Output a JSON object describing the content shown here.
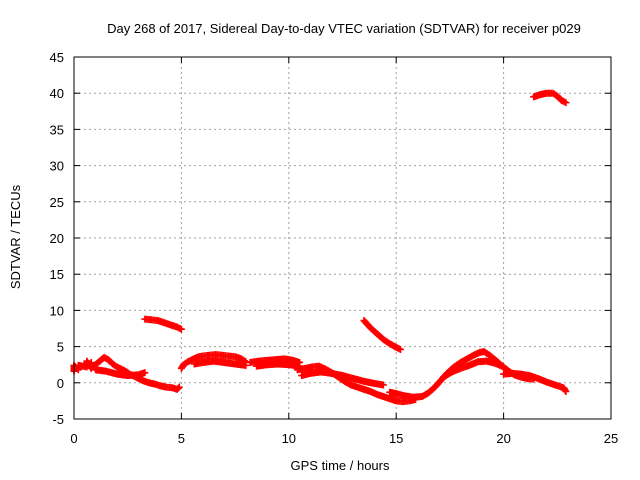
{
  "chart_data": {
    "type": "scatter",
    "title": "Day 268 of 2017, Sidereal Day-to-day VTEC variation (SDTVAR) for receiver p029",
    "xlabel": "GPS time / hours",
    "ylabel": "SDTVAR / TECUs",
    "xlim": [
      0,
      25
    ],
    "ylim": [
      -5,
      45
    ],
    "xticks": [
      0,
      5,
      10,
      15,
      20,
      25
    ],
    "yticks": [
      -5,
      0,
      5,
      10,
      15,
      20,
      25,
      30,
      35,
      40,
      45
    ],
    "grid": true,
    "marker_color": "#ff0000",
    "series": [
      {
        "name": "SDTVAR",
        "segments": [
          [
            [
              0.0,
              1.6
            ],
            [
              0.0,
              2.4
            ],
            [
              0.2,
              1.8
            ],
            [
              0.2,
              2.4
            ],
            [
              0.6,
              2.2
            ],
            [
              0.6,
              3.0
            ],
            [
              0.8,
              2.0
            ],
            [
              0.8,
              2.8
            ]
          ],
          [
            [
              0.9,
              2.2
            ],
            [
              1.0,
              2.5
            ],
            [
              1.2,
              3.0
            ],
            [
              1.4,
              3.5
            ],
            [
              1.6,
              3.2
            ],
            [
              1.8,
              2.6
            ],
            [
              2.0,
              2.2
            ],
            [
              2.2,
              1.9
            ],
            [
              2.4,
              1.6
            ],
            [
              2.6,
              1.2
            ],
            [
              2.8,
              0.9
            ],
            [
              3.0,
              0.6
            ],
            [
              3.2,
              0.3
            ],
            [
              3.5,
              0.0
            ],
            [
              3.8,
              -0.2
            ],
            [
              4.0,
              -0.4
            ],
            [
              4.3,
              -0.6
            ],
            [
              4.6,
              -0.7
            ],
            [
              4.8,
              -0.9
            ],
            [
              4.9,
              -0.6
            ]
          ],
          [
            [
              1.0,
              1.8
            ],
            [
              1.5,
              1.6
            ],
            [
              2.0,
              1.2
            ],
            [
              2.5,
              1.0
            ],
            [
              3.0,
              1.1
            ],
            [
              3.3,
              1.4
            ]
          ],
          [
            [
              3.3,
              8.8
            ],
            [
              3.6,
              8.7
            ],
            [
              3.9,
              8.6
            ],
            [
              4.2,
              8.3
            ],
            [
              4.5,
              8.0
            ],
            [
              4.8,
              7.7
            ],
            [
              5.0,
              7.4
            ]
          ],
          [
            [
              5.0,
              2.0
            ],
            [
              5.1,
              2.5
            ],
            [
              5.3,
              2.9
            ],
            [
              5.5,
              3.2
            ],
            [
              5.8,
              3.6
            ],
            [
              6.0,
              3.7
            ],
            [
              6.3,
              3.8
            ],
            [
              6.6,
              3.9
            ],
            [
              6.9,
              3.8
            ],
            [
              7.2,
              3.7
            ],
            [
              7.5,
              3.6
            ],
            [
              7.8,
              3.3
            ],
            [
              8.0,
              2.9
            ]
          ],
          [
            [
              5.6,
              2.6
            ],
            [
              6.0,
              2.8
            ],
            [
              6.5,
              3.0
            ],
            [
              7.0,
              2.8
            ],
            [
              7.5,
              2.6
            ],
            [
              8.0,
              2.4
            ]
          ],
          [
            [
              8.2,
              2.8
            ],
            [
              8.6,
              3.0
            ],
            [
              9.0,
              3.1
            ],
            [
              9.4,
              3.2
            ],
            [
              9.8,
              3.3
            ],
            [
              10.2,
              3.1
            ],
            [
              10.5,
              2.8
            ]
          ],
          [
            [
              8.5,
              2.3
            ],
            [
              9.0,
              2.5
            ],
            [
              9.5,
              2.6
            ],
            [
              10.0,
              2.5
            ],
            [
              10.5,
              2.3
            ]
          ],
          [
            [
              10.4,
              1.8
            ],
            [
              10.8,
              2.0
            ],
            [
              11.1,
              2.2
            ],
            [
              11.4,
              2.3
            ],
            [
              11.7,
              1.9
            ],
            [
              12.0,
              1.4
            ],
            [
              12.3,
              0.8
            ],
            [
              12.6,
              0.2
            ],
            [
              12.9,
              -0.3
            ],
            [
              13.2,
              -0.6
            ],
            [
              13.5,
              -0.9
            ],
            [
              13.8,
              -1.2
            ],
            [
              14.1,
              -1.6
            ],
            [
              14.4,
              -1.9
            ],
            [
              14.7,
              -2.2
            ],
            [
              15.0,
              -2.5
            ],
            [
              15.3,
              -2.6
            ],
            [
              15.6,
              -2.5
            ],
            [
              15.9,
              -2.3
            ]
          ],
          [
            [
              10.6,
              1.0
            ],
            [
              11.0,
              1.3
            ],
            [
              11.5,
              1.5
            ],
            [
              12.0,
              1.3
            ],
            [
              12.5,
              1.0
            ],
            [
              13.0,
              0.6
            ],
            [
              13.5,
              0.2
            ],
            [
              14.0,
              -0.1
            ],
            [
              14.4,
              -0.3
            ]
          ],
          [
            [
              13.5,
              8.6
            ],
            [
              13.8,
              7.6
            ],
            [
              14.1,
              6.8
            ],
            [
              14.4,
              6.0
            ],
            [
              14.7,
              5.4
            ],
            [
              15.0,
              4.9
            ],
            [
              15.2,
              4.6
            ]
          ],
          [
            [
              14.7,
              -1.3
            ],
            [
              15.0,
              -1.5
            ],
            [
              15.4,
              -1.8
            ],
            [
              15.8,
              -2.0
            ],
            [
              16.2,
              -1.9
            ],
            [
              16.5,
              -1.4
            ],
            [
              16.8,
              -0.6
            ],
            [
              17.1,
              0.4
            ],
            [
              17.4,
              1.4
            ],
            [
              17.7,
              2.2
            ],
            [
              18.0,
              2.8
            ],
            [
              18.3,
              3.3
            ],
            [
              18.6,
              3.8
            ],
            [
              18.9,
              4.2
            ],
            [
              19.1,
              4.3
            ],
            [
              19.3,
              3.9
            ],
            [
              19.6,
              3.2
            ],
            [
              19.9,
              2.4
            ],
            [
              20.2,
              1.7
            ],
            [
              20.5,
              1.1
            ],
            [
              20.8,
              0.8
            ],
            [
              21.1,
              0.6
            ],
            [
              21.4,
              0.5
            ]
          ],
          [
            [
              17.2,
              0.8
            ],
            [
              17.6,
              1.5
            ],
            [
              18.0,
              2.0
            ],
            [
              18.4,
              2.4
            ],
            [
              18.8,
              2.9
            ],
            [
              19.2,
              3.0
            ],
            [
              19.6,
              2.7
            ],
            [
              20.0,
              2.2
            ]
          ],
          [
            [
              20.0,
              1.2
            ],
            [
              20.4,
              1.3
            ],
            [
              20.8,
              1.2
            ],
            [
              21.2,
              1.0
            ],
            [
              21.6,
              0.6
            ],
            [
              22.0,
              0.1
            ],
            [
              22.4,
              -0.3
            ],
            [
              22.8,
              -0.7
            ],
            [
              22.9,
              -1.2
            ]
          ],
          [
            [
              21.4,
              39.5
            ],
            [
              21.7,
              39.8
            ],
            [
              22.0,
              40.0
            ],
            [
              22.3,
              40.0
            ],
            [
              22.5,
              39.6
            ],
            [
              22.7,
              39.0
            ],
            [
              22.9,
              38.7
            ]
          ]
        ]
      }
    ]
  }
}
